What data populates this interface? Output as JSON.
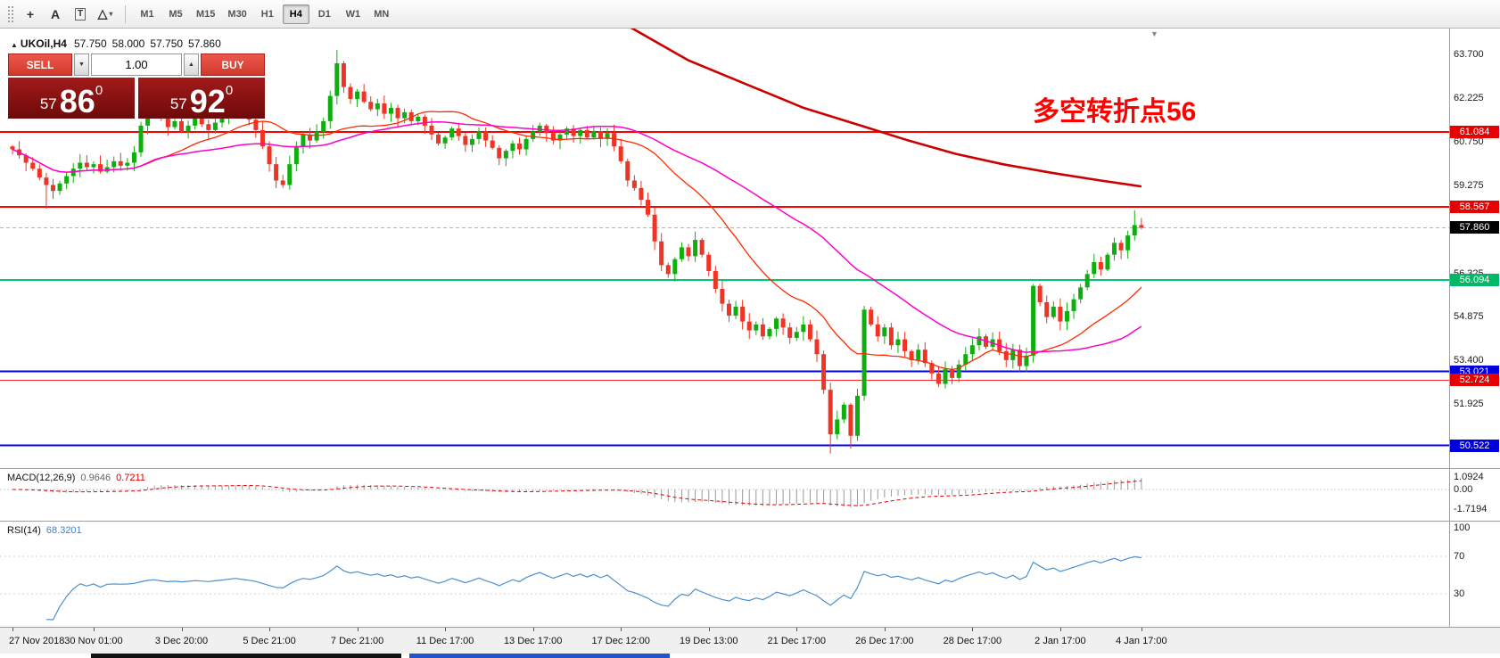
{
  "colors": {
    "bull": "#0fae0f",
    "bear": "#ee3424",
    "ma_fast": "#ff2a00",
    "ma_slow": "#ff00c8",
    "ma_trend": "#cc0000",
    "macd_hist": "#9a9a9a",
    "macd_signal": "#e00000",
    "rsi_line": "#4a90d2"
  },
  "toolbar": {
    "tools": [
      {
        "name": "crosshair",
        "glyph": "+"
      },
      {
        "name": "text-label",
        "glyph": "A"
      },
      {
        "name": "text-box",
        "glyph": "T",
        "boxed": true
      },
      {
        "name": "shapes",
        "glyph": "△",
        "caret": true
      }
    ],
    "timeframes": [
      "M1",
      "M5",
      "M15",
      "M30",
      "H1",
      "H4",
      "D1",
      "W1",
      "MN"
    ],
    "active_timeframe": "H4"
  },
  "header": {
    "symbol_period": "UKOil,H4",
    "open": "57.750",
    "high": "58.000",
    "low": "57.750",
    "close": "57.860"
  },
  "trade_panel": {
    "sell_label": "SELL",
    "buy_label": "BUY",
    "volume": "1.00",
    "sell_price": {
      "base": "57",
      "pips": "86",
      "sup": "0"
    },
    "buy_price": {
      "base": "57",
      "pips": "92",
      "sup": "0"
    }
  },
  "annotation": {
    "text": "多空转折点56"
  },
  "icons": {
    "shift_marker": "▼",
    "spinner_up": "▲",
    "spinner_down": "▼",
    "symbol_marker": "▲"
  },
  "price_axis": {
    "labels": [
      {
        "text": "63.700",
        "price": 63.7
      },
      {
        "text": "62.225",
        "price": 62.225
      },
      {
        "text": "60.750",
        "price": 60.75
      },
      {
        "text": "59.275",
        "price": 59.275
      },
      {
        "text": "56.325",
        "price": 56.325
      },
      {
        "text": "54.875",
        "price": 54.875
      },
      {
        "text": "53.400",
        "price": 53.4
      },
      {
        "text": "51.925",
        "price": 51.925
      }
    ],
    "badges": [
      {
        "text": "61.084",
        "price": 61.084,
        "bg": "#e60000"
      },
      {
        "text": "58.567",
        "price": 58.567,
        "bg": "#e60000"
      },
      {
        "text": "57.860",
        "price": 57.86,
        "bg": "#000000"
      },
      {
        "text": "56.094",
        "price": 56.094,
        "bg": "#00b866"
      },
      {
        "text": "53.021",
        "price": 53.021,
        "bg": "#0000dd"
      },
      {
        "text": "52.724",
        "price": 52.724,
        "bg": "#e60000"
      },
      {
        "text": "50.522",
        "price": 50.522,
        "bg": "#0000dd"
      }
    ]
  },
  "levels": [
    {
      "price": 61.084,
      "color": "#ff0000",
      "width": 2
    },
    {
      "price": 58.567,
      "color": "#ff0000",
      "width": 2
    },
    {
      "price": 57.86,
      "color": "#b4b4b4",
      "width": 1,
      "dash": true
    },
    {
      "price": 56.094,
      "color": "#00c86e",
      "width": 2
    },
    {
      "price": 53.021,
      "color": "#0000e0",
      "width": 2
    },
    {
      "price": 52.724,
      "color": "#ff2a2a",
      "width": 1
    },
    {
      "price": 50.522,
      "color": "#0000e0",
      "width": 2
    }
  ],
  "macd": {
    "label": "MACD(12,26,9)",
    "value_main": "0.9646",
    "value_signal": "0.7211",
    "axis": [
      "1.0924",
      "0.00",
      "-1.7194"
    ]
  },
  "rsi": {
    "label": "RSI(14)",
    "value": "68.3201",
    "axis": [
      "100",
      "70",
      "30"
    ]
  },
  "time_axis": [
    {
      "text": "27 Nov 2018",
      "i": 0
    },
    {
      "text": "30 Nov 01:00",
      "i": 12
    },
    {
      "text": "3 Dec 20:00",
      "i": 25
    },
    {
      "text": "5 Dec 21:00",
      "i": 38
    },
    {
      "text": "7 Dec 21:00",
      "i": 51
    },
    {
      "text": "11 Dec 17:00",
      "i": 64
    },
    {
      "text": "13 Dec 17:00",
      "i": 77
    },
    {
      "text": "17 Dec 12:00",
      "i": 90
    },
    {
      "text": "19 Dec 13:00",
      "i": 103
    },
    {
      "text": "21 Dec 17:00",
      "i": 116
    },
    {
      "text": "26 Dec 17:00",
      "i": 129
    },
    {
      "text": "28 Dec 17:00",
      "i": 142
    },
    {
      "text": "2 Jan 17:00",
      "i": 155
    },
    {
      "text": "4 Jan 17:00",
      "i": 167
    }
  ],
  "chart_data": {
    "type": "candlestick",
    "symbol": "UKOil",
    "timeframe": "H4",
    "ylim": [
      50.2,
      63.9
    ],
    "open_first": 60.6,
    "closes": [
      60.5,
      60.3,
      60.05,
      59.85,
      59.55,
      59.3,
      59.1,
      59.35,
      59.6,
      59.85,
      60.05,
      59.9,
      60.0,
      59.75,
      59.9,
      60.1,
      59.95,
      60.05,
      60.4,
      61.3,
      62.1,
      62.4,
      61.7,
      61.25,
      61.45,
      61.1,
      61.3,
      61.55,
      61.35,
      61.15,
      61.4,
      61.6,
      61.85,
      62.05,
      61.75,
      61.5,
      61.15,
      60.6,
      60.0,
      59.45,
      59.3,
      60.0,
      60.6,
      61.0,
      60.8,
      61.1,
      61.45,
      62.3,
      63.4,
      62.6,
      62.2,
      62.45,
      62.1,
      61.85,
      62.05,
      61.7,
      61.9,
      61.55,
      61.75,
      61.45,
      61.6,
      61.3,
      61.0,
      60.7,
      60.9,
      61.2,
      60.95,
      60.65,
      60.85,
      61.1,
      60.8,
      60.55,
      60.2,
      60.45,
      60.7,
      60.5,
      60.85,
      61.1,
      61.3,
      61.05,
      60.8,
      61.0,
      61.2,
      60.95,
      61.15,
      60.9,
      61.1,
      60.85,
      61.05,
      60.6,
      60.1,
      59.45,
      59.2,
      58.8,
      58.3,
      57.4,
      56.6,
      56.3,
      56.8,
      57.2,
      56.9,
      57.45,
      56.95,
      56.4,
      55.8,
      55.3,
      54.9,
      55.2,
      54.7,
      54.4,
      54.6,
      54.2,
      54.45,
      54.8,
      54.5,
      54.15,
      54.35,
      54.6,
      54.1,
      53.6,
      52.4,
      50.9,
      51.4,
      51.9,
      50.85,
      52.2,
      55.1,
      54.6,
      54.2,
      54.5,
      53.9,
      54.1,
      53.7,
      53.4,
      53.75,
      53.3,
      52.95,
      52.6,
      53.1,
      52.8,
      53.25,
      53.6,
      53.9,
      54.2,
      53.85,
      54.1,
      53.7,
      53.4,
      53.75,
      53.2,
      53.55,
      55.9,
      55.35,
      54.85,
      55.2,
      54.7,
      55.05,
      55.45,
      55.85,
      56.3,
      56.7,
      56.45,
      56.95,
      57.35,
      57.1,
      57.6,
      57.95,
      57.86
    ],
    "wick_overrides": {
      "5": {
        "l": 58.5
      },
      "21": {
        "h": 62.55
      },
      "48": {
        "h": 63.85
      },
      "121": {
        "l": 50.25
      },
      "124": {
        "l": 50.42
      },
      "166": {
        "h": 58.45
      }
    },
    "trend_ma_points": [
      [
        89,
        65.0
      ],
      [
        91.5,
        64.6
      ],
      [
        100,
        63.5
      ],
      [
        108.5,
        62.7
      ],
      [
        117,
        61.9
      ],
      [
        125.5,
        61.3
      ],
      [
        132.5,
        60.8
      ],
      [
        139.5,
        60.35
      ],
      [
        146.5,
        60.0
      ],
      [
        154,
        59.7
      ],
      [
        161,
        59.45
      ],
      [
        167,
        59.25
      ]
    ]
  }
}
